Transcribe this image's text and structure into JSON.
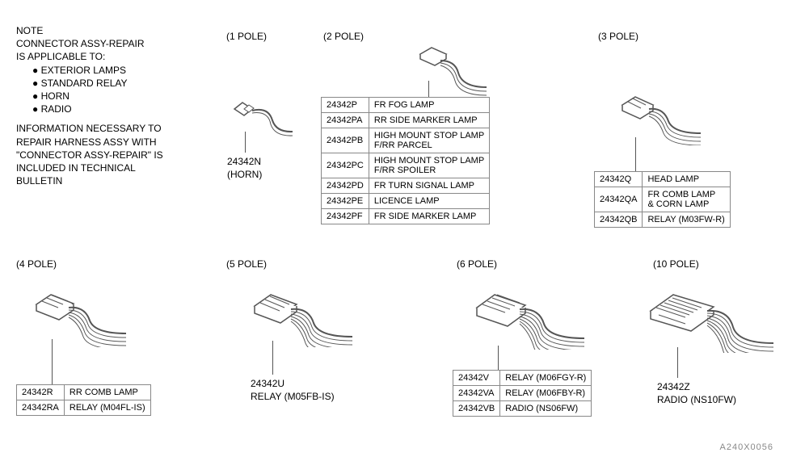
{
  "colors": {
    "page_bg": "#ffffff",
    "text": "#000000",
    "line": "#555555",
    "table_border": "#888888"
  },
  "note": {
    "title": "NOTE",
    "line1": "CONNECTOR ASSY-REPAIR",
    "line2": "IS APPLICABLE TO:",
    "bullets": [
      "EXTERIOR LAMPS",
      "STANDARD RELAY",
      "HORN",
      "RADIO"
    ],
    "paragraph_lines": [
      "INFORMATION NECESSARY TO",
      "REPAIR HARNESS ASSY WITH",
      "\"CONNECTOR ASSY-REPAIR\" IS",
      "INCLUDED IN TECHNICAL",
      "BULLETIN"
    ]
  },
  "groups": {
    "pole1": {
      "title": "(1 POLE)",
      "label_code": "24342N",
      "label_sub": "(HORN)"
    },
    "pole2": {
      "title": "(2 POLE)",
      "rows": [
        {
          "code": "24342P",
          "desc": "FR FOG LAMP"
        },
        {
          "code": "24342PA",
          "desc": "RR SIDE MARKER LAMP"
        },
        {
          "code": "24342PB",
          "desc": "HIGH MOUNT STOP LAMP\nF/RR PARCEL"
        },
        {
          "code": "24342PC",
          "desc": "HIGH MOUNT STOP LAMP\nF/RR SPOILER"
        },
        {
          "code": "24342PD",
          "desc": "FR TURN SIGNAL LAMP"
        },
        {
          "code": "24342PE",
          "desc": "LICENCE LAMP"
        },
        {
          "code": "24342PF",
          "desc": "FR SIDE MARKER LAMP"
        }
      ]
    },
    "pole3": {
      "title": "(3 POLE)",
      "rows": [
        {
          "code": "24342Q",
          "desc": "HEAD LAMP"
        },
        {
          "code": "24342QA",
          "desc": "FR COMB LAMP\n& CORN LAMP"
        },
        {
          "code": "24342QB",
          "desc": "RELAY (M03FW-R)"
        }
      ]
    },
    "pole4": {
      "title": "(4 POLE)",
      "rows": [
        {
          "code": "24342R",
          "desc": "RR COMB LAMP"
        },
        {
          "code": "24342RA",
          "desc": "RELAY (M04FL-IS)"
        }
      ]
    },
    "pole5": {
      "title": "(5 POLE)",
      "label_code": "24342U",
      "label_sub": "RELAY (M05FB-IS)"
    },
    "pole6": {
      "title": "(6 POLE)",
      "rows": [
        {
          "code": "24342V",
          "desc": "RELAY (M06FGY-R)"
        },
        {
          "code": "24342VA",
          "desc": "RELAY (M06FBY-R)"
        },
        {
          "code": "24342VB",
          "desc": "RADIO (NS06FW)"
        }
      ]
    },
    "pole10": {
      "title": "(10 POLE)",
      "label_code": "24342Z",
      "label_sub": "RADIO (NS10FW)"
    }
  },
  "footer_code": "A240X0056"
}
